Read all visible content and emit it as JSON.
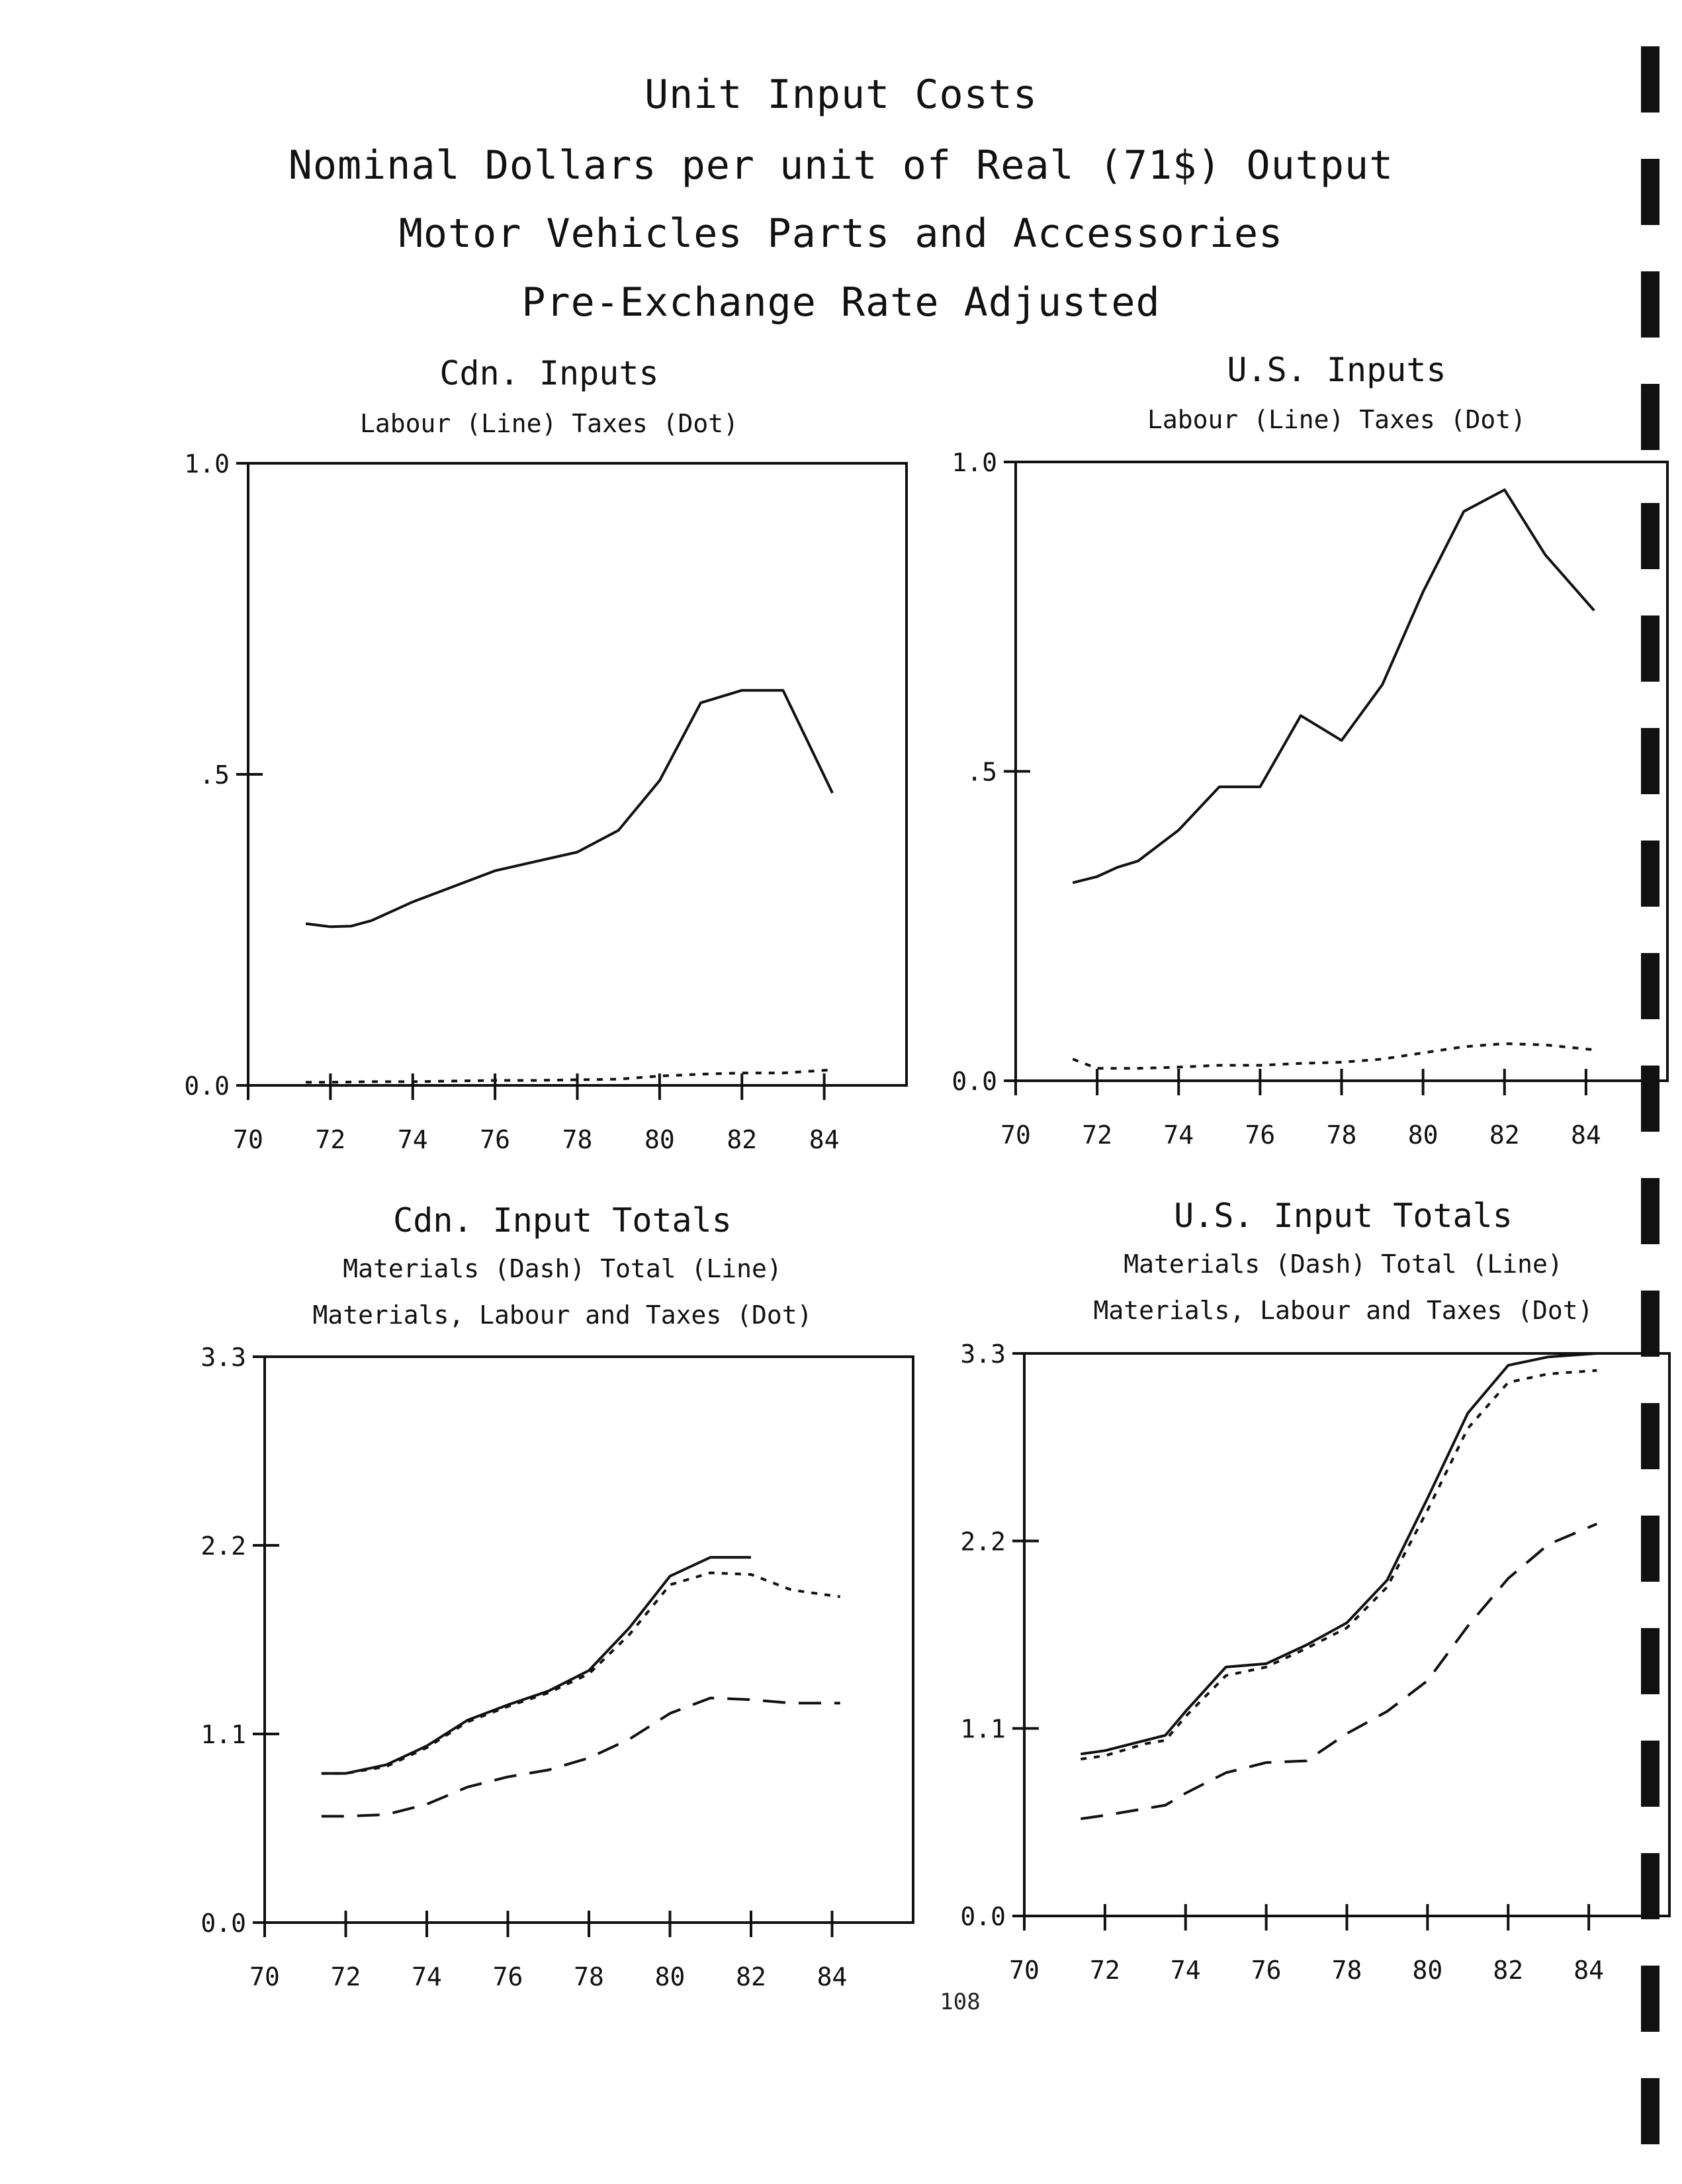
{
  "header": {
    "title_lines": [
      "Unit Input Costs",
      "Nominal Dollars per unit of Real (71$) Output",
      "Motor Vehicles Parts and Accessories",
      "Pre-Exchange Rate Adjusted"
    ]
  },
  "page_number": "108",
  "chart_data": [
    {
      "type": "line",
      "title": "Cdn. Inputs",
      "subtitles": [
        "Labour (Line)  Taxes (Dot)"
      ],
      "x_ticks": [
        "70",
        "72",
        "74",
        "76",
        "78",
        "80",
        "82",
        "84"
      ],
      "y_ticks": [
        "0.0",
        ".5",
        "1.0"
      ],
      "xlim": [
        70,
        86
      ],
      "ylim": [
        0,
        1.0
      ],
      "series": [
        {
          "name": "Labour (Line)",
          "style": "solid",
          "x": [
            71.4,
            72,
            72.5,
            73,
            74,
            75,
            76,
            77,
            78,
            79,
            80,
            81,
            82,
            83,
            84.2
          ],
          "y": [
            0.26,
            0.255,
            0.256,
            0.265,
            0.295,
            0.32,
            0.345,
            0.36,
            0.375,
            0.41,
            0.49,
            0.615,
            0.635,
            0.635,
            0.47
          ]
        },
        {
          "name": "Taxes (Dot)",
          "style": "dotted",
          "x": [
            71.4,
            72,
            73,
            74,
            75,
            76,
            77,
            78,
            79,
            80,
            81,
            82,
            83,
            84.2
          ],
          "y": [
            0.005,
            0.005,
            0.006,
            0.006,
            0.007,
            0.008,
            0.008,
            0.009,
            0.01,
            0.015,
            0.018,
            0.02,
            0.02,
            0.025
          ]
        }
      ]
    },
    {
      "type": "line",
      "title": "U.S. Inputs",
      "subtitles": [
        "Labour (Line)  Taxes (Dot)"
      ],
      "x_ticks": [
        "70",
        "72",
        "74",
        "76",
        "78",
        "80",
        "82",
        "84"
      ],
      "y_ticks": [
        "0.0",
        ".5",
        "1.0"
      ],
      "xlim": [
        70,
        86
      ],
      "ylim": [
        0,
        1.0
      ],
      "series": [
        {
          "name": "Labour (Line)",
          "style": "solid",
          "x": [
            71.4,
            72,
            72.5,
            73,
            74,
            75,
            76,
            77,
            78,
            79,
            80,
            81,
            82,
            83,
            84.2
          ],
          "y": [
            0.32,
            0.33,
            0.345,
            0.355,
            0.405,
            0.475,
            0.475,
            0.59,
            0.55,
            0.64,
            0.79,
            0.92,
            0.955,
            0.85,
            0.76
          ]
        },
        {
          "name": "Taxes (Dot)",
          "style": "dotted",
          "x": [
            71.4,
            72,
            73,
            74,
            75,
            76,
            77,
            78,
            79,
            80,
            81,
            82,
            83,
            84.2
          ],
          "y": [
            0.035,
            0.02,
            0.02,
            0.022,
            0.025,
            0.025,
            0.028,
            0.03,
            0.035,
            0.045,
            0.055,
            0.06,
            0.058,
            0.05
          ]
        }
      ]
    },
    {
      "type": "line",
      "title": "Cdn. Input Totals",
      "subtitles": [
        "Materials (Dash)   Total (Line)",
        "Materials, Labour and Taxes (Dot)"
      ],
      "x_ticks": [
        "70",
        "72",
        "74",
        "76",
        "78",
        "80",
        "82",
        "84"
      ],
      "y_ticks": [
        "0.0",
        "1.1",
        "2.2",
        "3.3"
      ],
      "xlim": [
        70,
        86
      ],
      "ylim": [
        0,
        3.3
      ],
      "series": [
        {
          "name": "Total (Line)",
          "style": "solid",
          "x": [
            71.4,
            72,
            73,
            74,
            75,
            76,
            77,
            78,
            79,
            80,
            81,
            82
          ],
          "y": [
            0.87,
            0.87,
            0.92,
            1.03,
            1.18,
            1.27,
            1.35,
            1.47,
            1.72,
            2.02,
            2.13,
            2.13
          ]
        },
        {
          "name": "Materials, Labour and Taxes (Dot)",
          "style": "dotted",
          "x": [
            71.4,
            72,
            73,
            74,
            75,
            76,
            77,
            78,
            79,
            80,
            81,
            82,
            83,
            84.2
          ],
          "y": [
            0.87,
            0.87,
            0.91,
            1.02,
            1.17,
            1.26,
            1.34,
            1.45,
            1.68,
            1.97,
            2.04,
            2.03,
            1.94,
            1.9
          ]
        },
        {
          "name": "Materials (Dash)",
          "style": "dashed",
          "x": [
            71.4,
            72,
            73,
            74,
            75,
            76,
            77,
            78,
            79,
            80,
            81,
            82,
            83,
            84.2
          ],
          "y": [
            0.62,
            0.62,
            0.63,
            0.69,
            0.79,
            0.85,
            0.89,
            0.96,
            1.07,
            1.22,
            1.31,
            1.3,
            1.28,
            1.28
          ]
        }
      ]
    },
    {
      "type": "line",
      "title": "U.S. Input Totals",
      "subtitles": [
        "Materials (Dash)   Total (Line)",
        "Materials, Labour and Taxes (Dot)"
      ],
      "x_ticks": [
        "70",
        "72",
        "74",
        "76",
        "78",
        "80",
        "82",
        "84"
      ],
      "y_ticks": [
        "0.0",
        "1.1",
        "2.2",
        "3.3"
      ],
      "xlim": [
        70,
        86
      ],
      "ylim": [
        0,
        3.3
      ],
      "series": [
        {
          "name": "Total (Line)",
          "style": "solid",
          "x": [
            71.4,
            72,
            73,
            73.5,
            74,
            75,
            76,
            77,
            78,
            79,
            80,
            81,
            82,
            83,
            84.2
          ],
          "y": [
            0.95,
            0.97,
            1.03,
            1.06,
            1.2,
            1.46,
            1.48,
            1.59,
            1.72,
            1.97,
            2.45,
            2.95,
            3.23,
            3.28,
            3.3
          ]
        },
        {
          "name": "Materials, Labour and Taxes (Dot)",
          "style": "dotted",
          "x": [
            71.4,
            72,
            73,
            73.5,
            74,
            75,
            76,
            77,
            78,
            79,
            80,
            81,
            82,
            83,
            84.2
          ],
          "y": [
            0.92,
            0.94,
            1.01,
            1.03,
            1.17,
            1.41,
            1.46,
            1.57,
            1.69,
            1.93,
            2.38,
            2.86,
            3.13,
            3.18,
            3.2
          ]
        },
        {
          "name": "Materials (Dash)",
          "style": "dashed",
          "x": [
            71.4,
            72,
            73,
            73.5,
            74,
            75,
            76,
            77,
            78,
            79,
            80,
            81,
            82,
            83,
            84.2
          ],
          "y": [
            0.57,
            0.59,
            0.63,
            0.65,
            0.72,
            0.84,
            0.9,
            0.91,
            1.07,
            1.2,
            1.38,
            1.7,
            1.98,
            2.18,
            2.3
          ]
        }
      ]
    }
  ]
}
